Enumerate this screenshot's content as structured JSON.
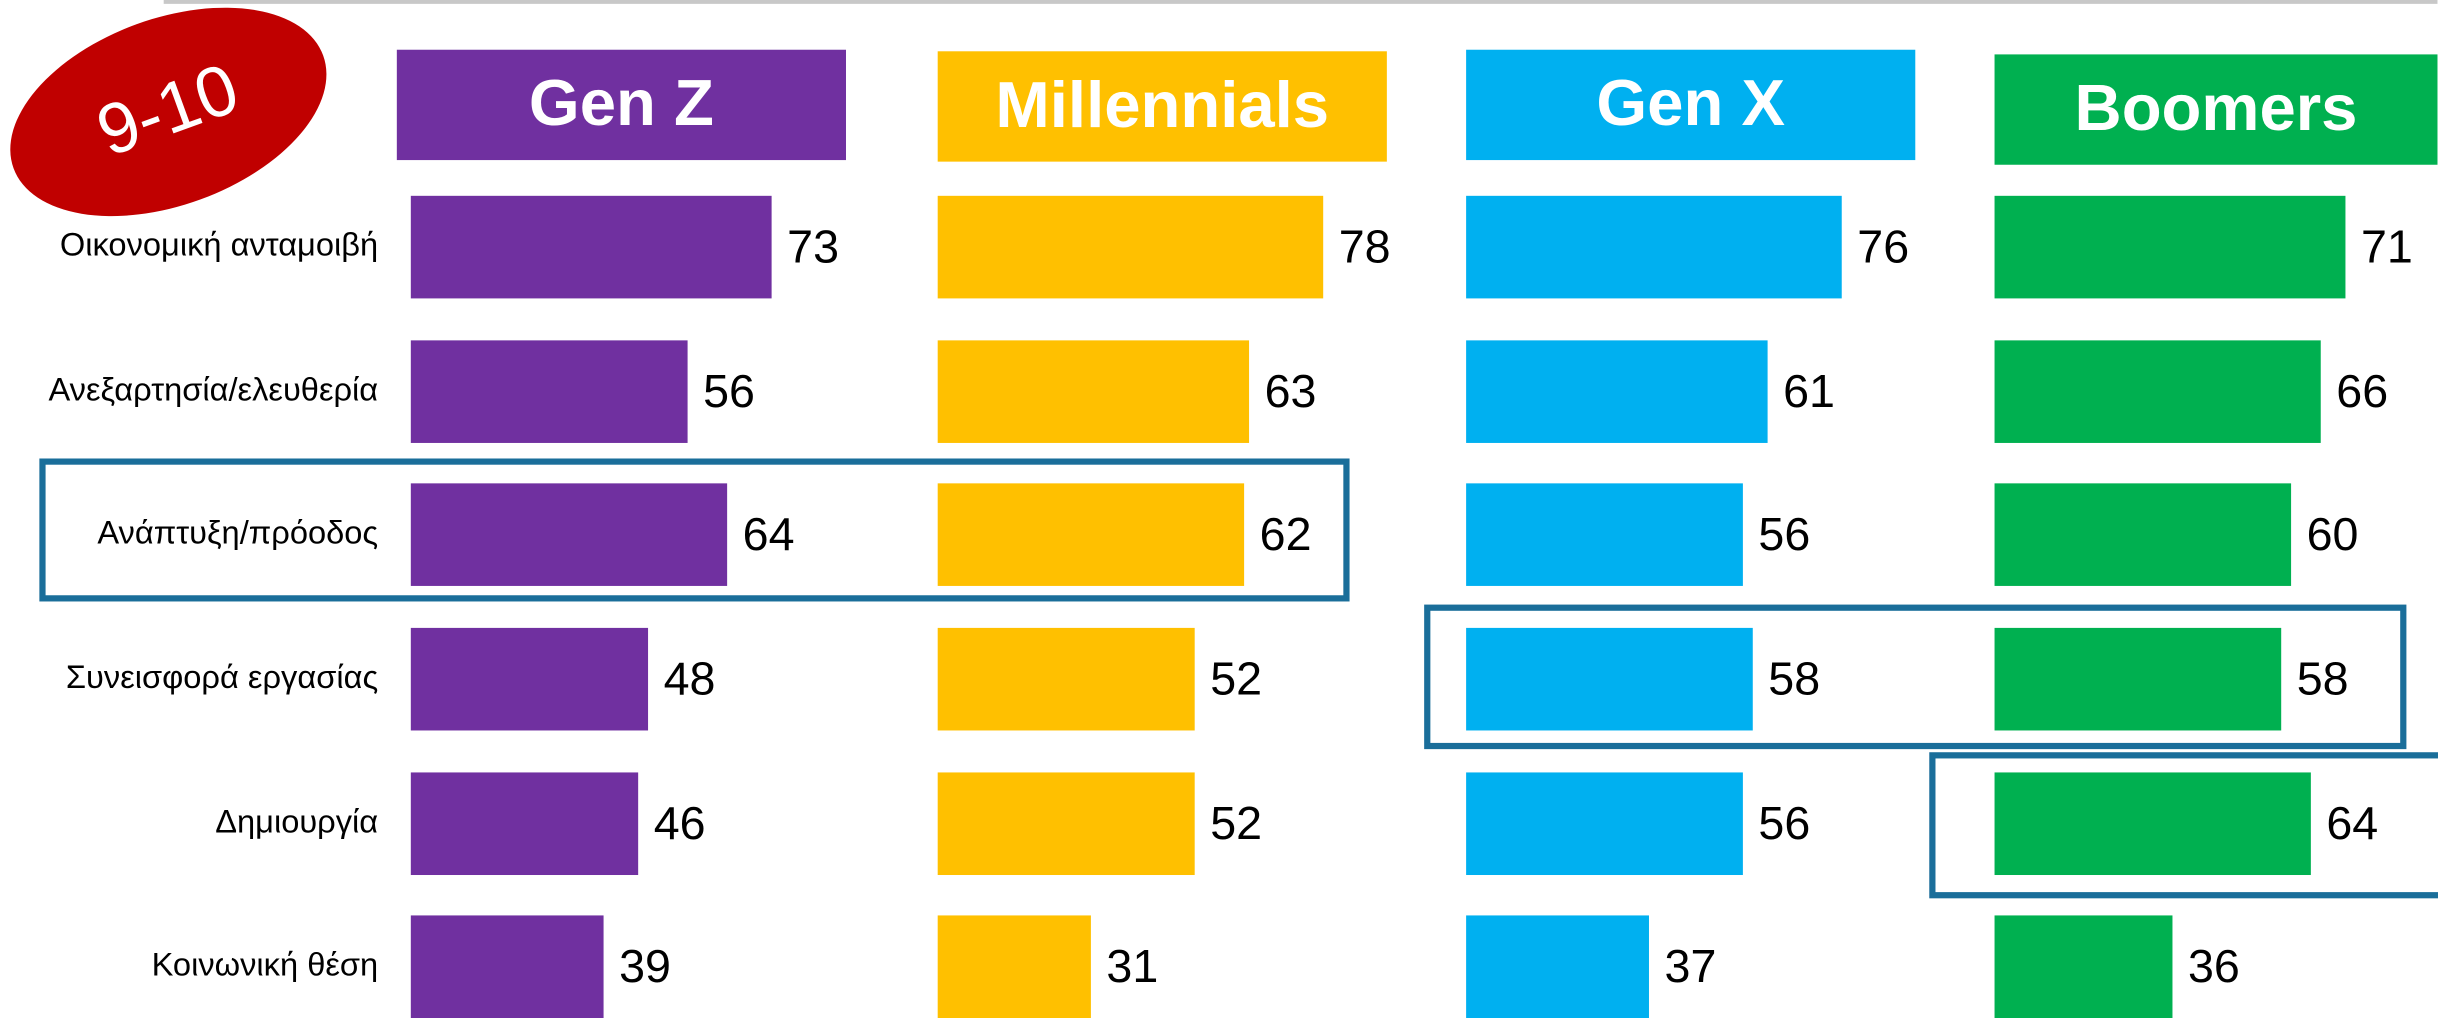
{
  "badge": "9-10",
  "chart_data": [
    {
      "type": "bar",
      "title": "Gen Z",
      "color": "#7030a0",
      "categories": [
        "Οικονομική ανταμοιβή",
        "Ανεξαρτησία/ελευθερία",
        "Ανάπτυξη/πρόοδος",
        "Συνεισφορά εργασίας",
        "Δημιουργία",
        "Κοινωνική θέση"
      ],
      "values": [
        73,
        56,
        64,
        48,
        46,
        39
      ]
    },
    {
      "type": "bar",
      "title": "Millennials",
      "color": "#ffc000",
      "values": [
        78,
        63,
        62,
        52,
        52,
        31
      ]
    },
    {
      "type": "bar",
      "title": "Gen X",
      "color": "#00b0f0",
      "values": [
        76,
        61,
        56,
        58,
        56,
        37
      ]
    },
    {
      "type": "bar",
      "title": "Boomers",
      "color": "#00b050",
      "values": [
        71,
        66,
        60,
        58,
        64,
        36
      ]
    }
  ]
}
